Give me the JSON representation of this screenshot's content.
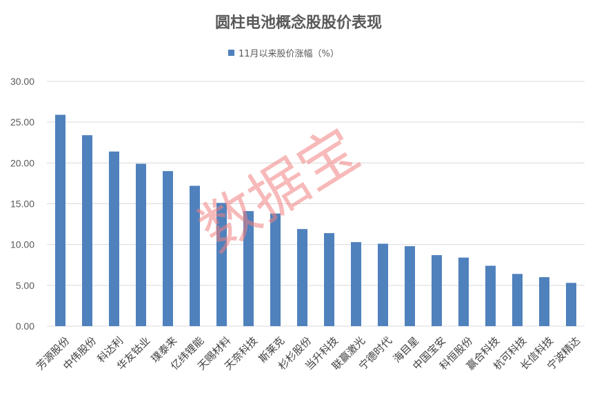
{
  "chart_data": {
    "type": "bar",
    "title": "圆柱电池概念股股价表现",
    "legend": {
      "position": "top",
      "entries": [
        "11月以来股价涨幅（%）"
      ]
    },
    "series": [
      {
        "name": "11月以来股价涨幅（%）",
        "values": [
          25.9,
          23.4,
          21.4,
          19.9,
          19.0,
          17.2,
          15.1,
          14.1,
          13.8,
          11.9,
          11.4,
          10.3,
          10.1,
          9.8,
          8.7,
          8.4,
          7.4,
          6.4,
          6.0,
          5.3
        ]
      }
    ],
    "categories": [
      "芳源股份",
      "中伟股份",
      "科达利",
      "华友钴业",
      "璞泰来",
      "亿纬锂能",
      "天赐材料",
      "天奈科技",
      "斯莱克",
      "杉杉股份",
      "当升科技",
      "联赢激光",
      "宁德时代",
      "海目星",
      "中国宝安",
      "科恒股份",
      "赢合科技",
      "杭可科技",
      "长信科技",
      "宁波精达"
    ],
    "ylim": [
      0,
      30
    ],
    "yticks": [
      "0.00",
      "5.00",
      "10.00",
      "15.00",
      "20.00",
      "25.00",
      "30.00"
    ],
    "grid": true,
    "bar_color": "#4f81bd"
  },
  "watermark": "数据宝"
}
